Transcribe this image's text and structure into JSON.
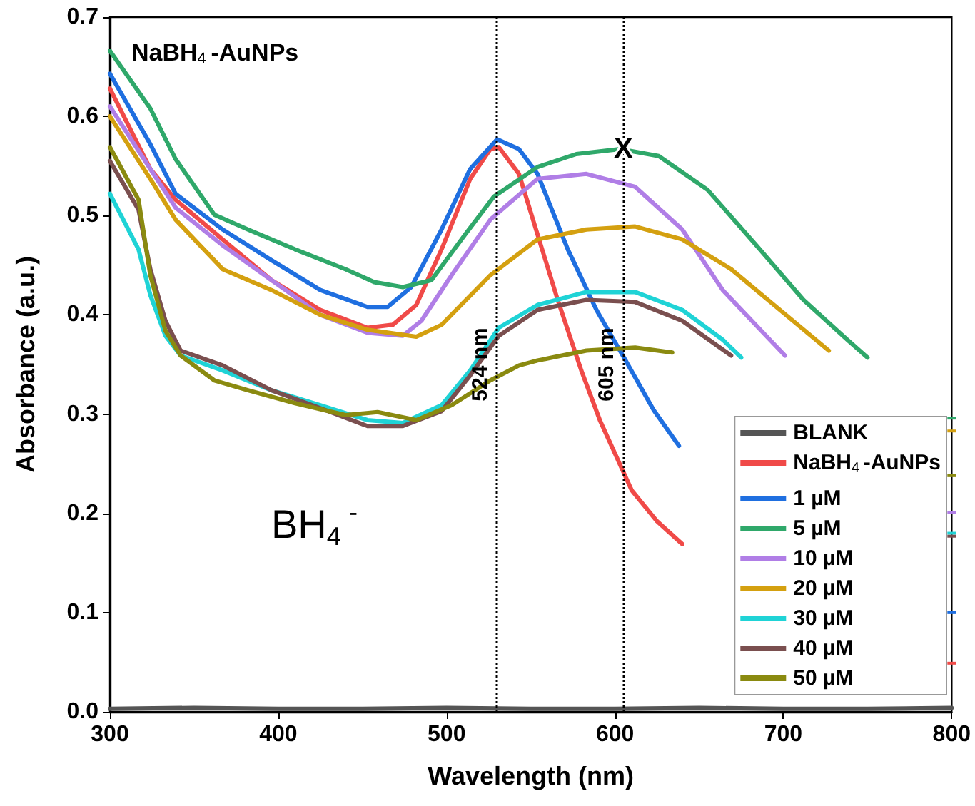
{
  "chart_data": {
    "type": "line",
    "xlabel": "Wavelength (nm)",
    "ylabel": "Absorbance (a.u.)",
    "xlim": [
      300,
      800
    ],
    "xticks": [
      300,
      400,
      500,
      600,
      700,
      800
    ],
    "ylim": [
      0,
      0.7
    ],
    "yticks": [
      {
        "value": 0,
        "label": "0.0"
      },
      0.1,
      0.2,
      0.3,
      0.4,
      0.5,
      0.6,
      0.7
    ],
    "grid": false,
    "legend": "bottom right",
    "marker": "none",
    "annotations": [
      "NaBH$_{4}$-AuNPs",
      "BH$_{4}$$^{-}$",
      {
        "text": "X",
        "x": 605,
        "y": 0.567
      }
    ],
    "ref_lines": [
      {
        "axis": "x",
        "value": 530,
        "label": "524 nm"
      },
      {
        "axis": "x",
        "value": 605,
        "label": "605 nm"
      }
    ],
    "series": [
      {
        "name": "BLANK",
        "color": "#555555",
        "x": [
          300,
          350,
          400,
          450,
          500,
          550,
          600,
          650,
          700,
          750,
          800
        ],
        "values": [
          0.003,
          0.004,
          0.003,
          0.003,
          0.004,
          0.003,
          0.003,
          0.004,
          0.003,
          0.003,
          0.004
        ]
      },
      {
        "name": "NaBH$_{4}$-AuNPs",
        "color": "#f04a48",
        "x": [
          300,
          324,
          339,
          367,
          396,
          425,
          453,
          468,
          482,
          497,
          514,
          526,
          531,
          543,
          554,
          566,
          580,
          591,
          610,
          625,
          640,
          700,
          800
        ],
        "values": [
          0.628,
          0.547,
          0.516,
          0.476,
          0.435,
          0.405,
          0.387,
          0.39,
          0.41,
          0.466,
          0.537,
          0.567,
          0.569,
          0.542,
          0.481,
          0.415,
          0.344,
          0.294,
          0.223,
          0.192,
          0.169,
          null,
          0.049
        ]
      },
      {
        "name": "1 µM",
        "color": "#1f6fe0",
        "x": [
          300,
          324,
          339,
          367,
          396,
          425,
          453,
          465,
          479,
          497,
          514,
          530,
          543,
          554,
          572,
          589,
          606,
          623,
          638,
          700,
          800
        ],
        "values": [
          0.643,
          0.572,
          0.522,
          0.486,
          0.455,
          0.425,
          0.408,
          0.408,
          0.428,
          0.486,
          0.547,
          0.577,
          0.567,
          0.542,
          0.466,
          0.405,
          0.355,
          0.304,
          0.268,
          null,
          0.1
        ]
      },
      {
        "name": "5 µM",
        "color": "#2fa86a",
        "x": [
          300,
          324,
          339,
          362,
          382,
          410,
          440,
          457,
          474,
          491,
          511,
          528,
          554,
          577,
          603,
          626,
          655,
          684,
          712,
          738,
          750,
          780,
          800
        ],
        "values": [
          0.666,
          0.608,
          0.557,
          0.501,
          0.486,
          0.466,
          0.446,
          0.433,
          0.428,
          0.435,
          0.481,
          0.519,
          0.549,
          0.562,
          0.567,
          0.56,
          0.526,
          0.47,
          0.415,
          0.375,
          0.357,
          null,
          0.296
        ]
      },
      {
        "name": "10 µM",
        "color": "#b07ee6",
        "x": [
          300,
          324,
          339,
          367,
          396,
          425,
          453,
          474,
          485,
          503,
          526,
          554,
          583,
          612,
          640,
          664,
          692,
          701,
          750,
          800
        ],
        "values": [
          0.61,
          0.547,
          0.508,
          0.47,
          0.435,
          0.4,
          0.382,
          0.379,
          0.394,
          0.44,
          0.496,
          0.537,
          0.542,
          0.529,
          0.486,
          0.425,
          0.375,
          0.359,
          null,
          0.201
        ]
      },
      {
        "name": "20 µM",
        "color": "#d4a010",
        "x": [
          300,
          324,
          339,
          367,
          396,
          425,
          453,
          482,
          497,
          526,
          554,
          583,
          612,
          640,
          669,
          698,
          727,
          760,
          800
        ],
        "values": [
          0.6,
          0.537,
          0.496,
          0.446,
          0.425,
          0.4,
          0.385,
          0.378,
          0.39,
          0.44,
          0.476,
          0.486,
          0.489,
          0.476,
          0.446,
          0.405,
          0.364,
          null,
          0.283
        ]
      },
      {
        "name": "30 µM",
        "color": "#1fd3d6",
        "x": [
          300,
          317,
          324,
          333,
          342,
          367,
          396,
          425,
          453,
          474,
          497,
          514,
          531,
          554,
          583,
          612,
          640,
          664,
          675,
          740,
          800
        ],
        "values": [
          0.522,
          0.466,
          0.42,
          0.379,
          0.359,
          0.344,
          0.324,
          0.309,
          0.294,
          0.291,
          0.309,
          0.344,
          0.387,
          0.41,
          0.423,
          0.423,
          0.405,
          0.375,
          0.357,
          null,
          0.18
        ]
      },
      {
        "name": "40 µM",
        "color": "#7a4f4f",
        "x": [
          300,
          317,
          324,
          333,
          342,
          367,
          396,
          425,
          453,
          474,
          497,
          514,
          531,
          554,
          583,
          612,
          640,
          669,
          740,
          800
        ],
        "values": [
          0.555,
          0.506,
          0.446,
          0.394,
          0.364,
          0.349,
          0.324,
          0.306,
          0.288,
          0.288,
          0.303,
          0.339,
          0.379,
          0.405,
          0.415,
          0.413,
          0.394,
          0.359,
          null,
          0.177
        ]
      },
      {
        "name": "50 µM",
        "color": "#8a8a10",
        "x": [
          300,
          317,
          324,
          333,
          342,
          362,
          382,
          410,
          440,
          459,
          482,
          503,
          526,
          543,
          554,
          583,
          612,
          634,
          720,
          800
        ],
        "values": [
          0.569,
          0.516,
          0.44,
          0.384,
          0.359,
          0.334,
          0.324,
          0.311,
          0.299,
          0.302,
          0.294,
          0.309,
          0.334,
          0.349,
          0.354,
          0.364,
          0.367,
          0.362,
          null,
          0.238
        ]
      }
    ]
  }
}
